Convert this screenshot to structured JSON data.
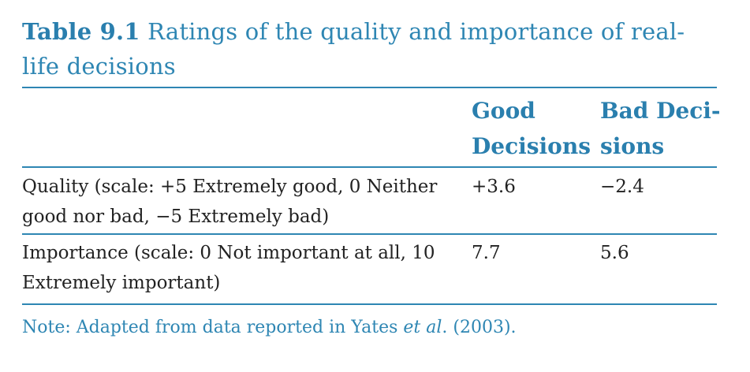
{
  "caption": {
    "label": "Table 9.1",
    "text": "Ratings of the quality and importance of real-life decisions"
  },
  "columns": {
    "good": {
      "line1": "Good",
      "line2": "Decisions"
    },
    "bad": {
      "line1": "Bad Deci-",
      "line2": "sions"
    }
  },
  "rows": [
    {
      "label_line1": "Quality (scale: +5 Extremely good, 0 Neither",
      "label_line2": "good nor bad, −5 Extremely bad)",
      "good": "+3.6",
      "bad": "−2.4"
    },
    {
      "label_line1": "Importance (scale: 0 Not important at all, 10",
      "label_line2": "Extremely important)",
      "good": "7.7",
      "bad": "5.6"
    }
  ],
  "note": {
    "prefix": "Note: Adapted from data reported in Yates ",
    "italic": "et al",
    "suffix": ". (2003)."
  },
  "colors": {
    "accent": "#2e86b3",
    "text": "#222222"
  }
}
